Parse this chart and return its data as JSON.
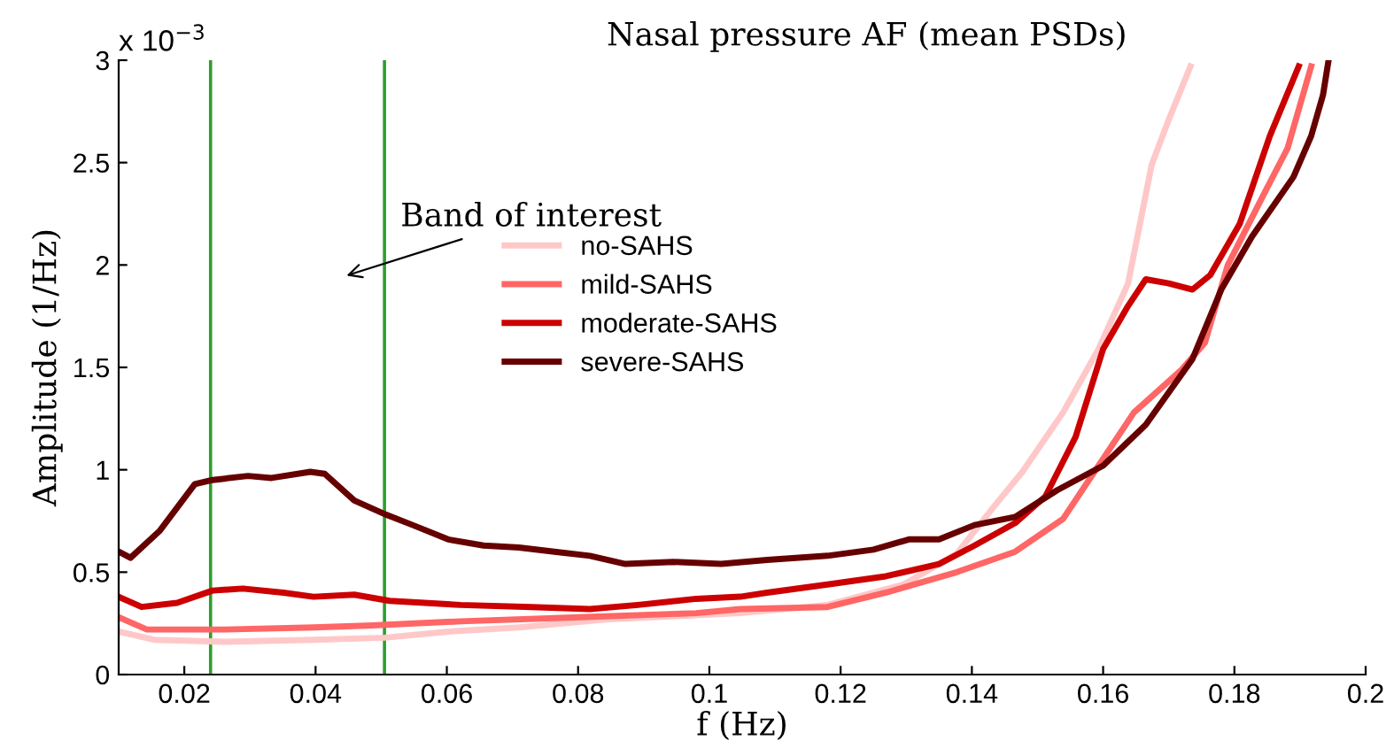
{
  "chart_data": {
    "type": "line",
    "title": "Nasal pressure AF (mean PSDs)",
    "xlabel": "f (Hz)",
    "ylabel": "Amplitude (1/Hz)",
    "annotations": [
      "x 10$^{−3}$",
      "Band of interest"
    ],
    "xlim": [
      0.01,
      0.2
    ],
    "xticks": [
      0.02,
      0.04,
      0.06,
      0.08,
      0.1,
      0.12,
      0.14,
      0.16,
      0.18,
      0.2
    ],
    "ylim": [
      0,
      3
    ],
    "yticks": [
      0,
      0.5,
      1,
      1.5,
      2,
      2.5,
      3
    ],
    "grid": false,
    "legend": "center",
    "line_style": "solid",
    "marker": "none",
    "ref_lines": [
      {
        "axis": "x",
        "value": 0.024,
        "color": "#2ca02c"
      },
      {
        "axis": "x",
        "value": 0.0505,
        "color": "#2ca02c"
      }
    ],
    "series": [
      {
        "name": "no-SAHS",
        "color": "#ffc8c8",
        "x": [
          0.01,
          0.0154,
          0.0262,
          0.0397,
          0.0505,
          0.0602,
          0.071,
          0.0845,
          0.098,
          0.1047,
          0.118,
          0.1296,
          0.1377,
          0.1431,
          0.1477,
          0.1539,
          0.1593,
          0.1638,
          0.1674,
          0.17,
          0.1733
        ],
        "values": [
          0.21,
          0.17,
          0.16,
          0.17,
          0.18,
          0.21,
          0.23,
          0.27,
          0.29,
          0.3,
          0.34,
          0.44,
          0.59,
          0.81,
          0.99,
          1.28,
          1.59,
          1.91,
          2.49,
          2.71,
          2.97
        ]
      },
      {
        "name": "mild-SAHS",
        "color": "#ff6666",
        "x": [
          0.01,
          0.0143,
          0.0262,
          0.0397,
          0.0486,
          0.0621,
          0.0802,
          0.098,
          0.1047,
          0.118,
          0.1269,
          0.1377,
          0.1466,
          0.1539,
          0.1593,
          0.1647,
          0.172,
          0.1755,
          0.179,
          0.1844,
          0.1881,
          0.1917
        ],
        "values": [
          0.28,
          0.22,
          0.22,
          0.23,
          0.24,
          0.26,
          0.28,
          0.3,
          0.32,
          0.33,
          0.4,
          0.5,
          0.6,
          0.76,
          1.02,
          1.28,
          1.49,
          1.62,
          2.0,
          2.34,
          2.57,
          2.97
        ]
      },
      {
        "name": "moderate-SAHS",
        "color": "#cc0000",
        "x": [
          0.01,
          0.0135,
          0.0189,
          0.0243,
          0.0289,
          0.0351,
          0.0397,
          0.0459,
          0.0513,
          0.0621,
          0.0729,
          0.0818,
          0.0891,
          0.098,
          0.1047,
          0.1088,
          0.118,
          0.1269,
          0.135,
          0.1404,
          0.1466,
          0.1512,
          0.1558,
          0.16,
          0.1638,
          0.1665,
          0.17,
          0.1736,
          0.1763,
          0.1808,
          0.1854,
          0.1898
        ],
        "values": [
          0.38,
          0.33,
          0.35,
          0.41,
          0.42,
          0.4,
          0.38,
          0.39,
          0.36,
          0.34,
          0.33,
          0.32,
          0.34,
          0.37,
          0.38,
          0.4,
          0.44,
          0.48,
          0.54,
          0.63,
          0.74,
          0.87,
          1.16,
          1.59,
          1.8,
          1.93,
          1.91,
          1.88,
          1.95,
          2.2,
          2.63,
          2.97
        ]
      },
      {
        "name": "severe-SAHS",
        "color": "#660000",
        "x": [
          0.01,
          0.0118,
          0.0162,
          0.0216,
          0.0243,
          0.0297,
          0.0333,
          0.0392,
          0.0414,
          0.0459,
          0.0508,
          0.0548,
          0.0602,
          0.0656,
          0.071,
          0.0764,
          0.0818,
          0.0872,
          0.0945,
          0.1018,
          0.1088,
          0.118,
          0.125,
          0.1304,
          0.135,
          0.1404,
          0.1466,
          0.153,
          0.16,
          0.1665,
          0.1736,
          0.178,
          0.1827,
          0.189,
          0.1917,
          0.1935,
          0.1943
        ],
        "values": [
          0.6,
          0.57,
          0.7,
          0.93,
          0.95,
          0.97,
          0.96,
          0.99,
          0.98,
          0.85,
          0.78,
          0.73,
          0.66,
          0.63,
          0.62,
          0.6,
          0.58,
          0.54,
          0.55,
          0.54,
          0.56,
          0.58,
          0.61,
          0.66,
          0.66,
          0.73,
          0.77,
          0.9,
          1.02,
          1.22,
          1.54,
          1.88,
          2.14,
          2.43,
          2.63,
          2.83,
          2.99
        ]
      }
    ]
  }
}
